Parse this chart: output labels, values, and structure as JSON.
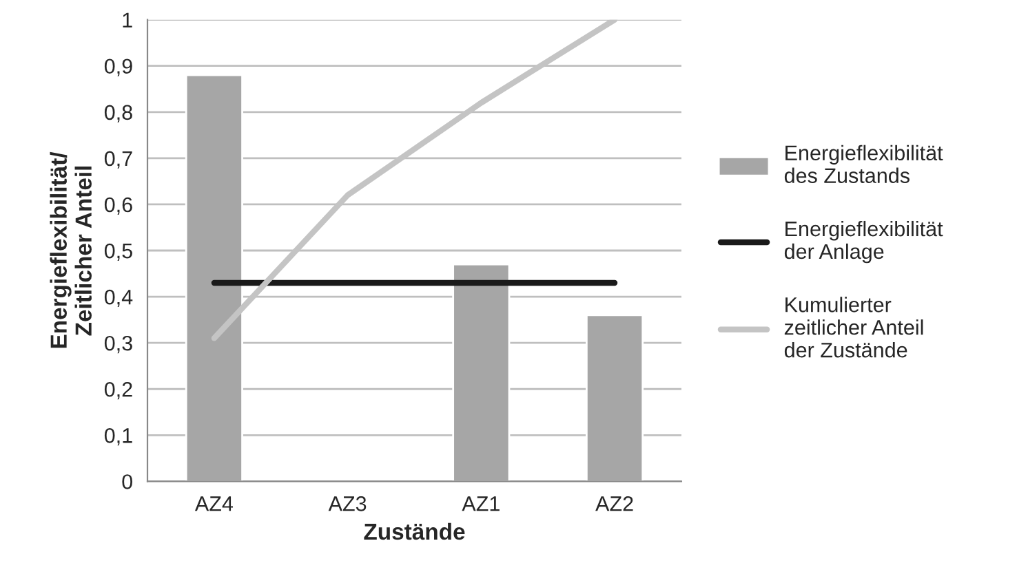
{
  "chart_data": {
    "type": "bar",
    "xlabel": "Zustände",
    "ylabel": "Energieflexibilität/\nZeitlicher Anteil",
    "categories": [
      "AZ4",
      "AZ3",
      "AZ1",
      "AZ2"
    ],
    "series": [
      {
        "name": "Energieflexibilität\ndes Zustands",
        "color": "#a6a6a6",
        "values": [
          0.88,
          null,
          0.47,
          0.36
        ]
      },
      {
        "name": "Energieflexibilität\nder Anlage",
        "type": "line",
        "color": "#1a1a1a",
        "values": [
          0.43,
          0.43,
          0.43,
          0.43
        ]
      },
      {
        "name": "Kumulierter\nzeitlicher Anteil\nder Zustände",
        "type": "line",
        "color": "#c4c4c4",
        "values": [
          0.31,
          0.62,
          0.82,
          1.0
        ]
      }
    ],
    "ylim": [
      0,
      1
    ],
    "yticks": [
      {
        "value": 0,
        "label": "0"
      },
      {
        "value": 0.1,
        "label": "0,1"
      },
      {
        "value": 0.2,
        "label": "0,2"
      },
      {
        "value": 0.3,
        "label": "0,3"
      },
      {
        "value": 0.4,
        "label": "0,4"
      },
      {
        "value": 0.5,
        "label": "0,5"
      },
      {
        "value": 0.6,
        "label": "0,6"
      },
      {
        "value": 0.7,
        "label": "0,7"
      },
      {
        "value": 0.8,
        "label": "0,8"
      },
      {
        "value": 0.9,
        "label": "0,9"
      },
      {
        "value": 1,
        "label": "1"
      }
    ],
    "grid": "y",
    "legend": "right"
  }
}
